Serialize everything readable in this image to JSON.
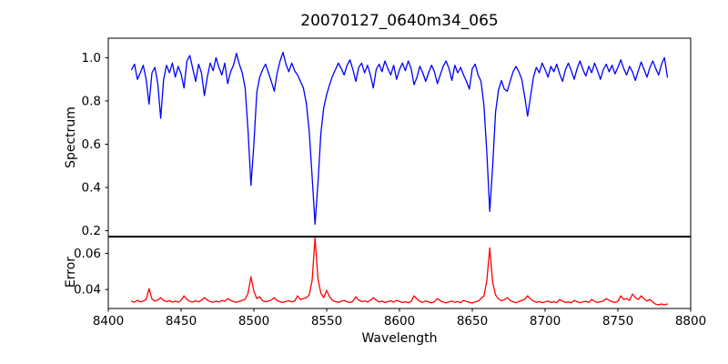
{
  "figure": {
    "title": "20070127_0640m34_065",
    "xlabel": "Wavelength",
    "panels": [
      {
        "ylabel": "Spectrum"
      },
      {
        "ylabel": "Error"
      }
    ]
  },
  "chart_data": [
    {
      "type": "line",
      "panel": "spectrum",
      "title": "20070127_0640m34_065",
      "ylabel": "Spectrum",
      "xlabel": "",
      "legend": "none",
      "grid": false,
      "color": "#0000ff",
      "xlim": [
        8400,
        8800
      ],
      "ylim": [
        0.175,
        1.09
      ],
      "yticks": [
        1.0,
        0.8,
        0.6,
        0.4,
        0.2
      ],
      "yticklabels": [
        "1.0",
        "0.8",
        "0.6",
        "0.4",
        "0.2"
      ],
      "x_start": 8416,
      "x_step": 2,
      "values": [
        0.945,
        0.97,
        0.9,
        0.93,
        0.965,
        0.9,
        0.785,
        0.93,
        0.955,
        0.88,
        0.72,
        0.9,
        0.965,
        0.93,
        0.975,
        0.91,
        0.96,
        0.925,
        0.86,
        0.985,
        1.01,
        0.95,
        0.89,
        0.97,
        0.93,
        0.825,
        0.91,
        0.975,
        0.94,
        1.0,
        0.955,
        0.92,
        0.975,
        0.88,
        0.935,
        0.965,
        1.02,
        0.97,
        0.93,
        0.86,
        0.66,
        0.41,
        0.6,
        0.84,
        0.91,
        0.945,
        0.97,
        0.93,
        0.89,
        0.845,
        0.93,
        0.985,
        1.025,
        0.97,
        0.935,
        0.975,
        0.94,
        0.92,
        0.89,
        0.86,
        0.79,
        0.66,
        0.45,
        0.23,
        0.42,
        0.65,
        0.77,
        0.83,
        0.875,
        0.915,
        0.945,
        0.975,
        0.95,
        0.92,
        0.965,
        0.99,
        0.945,
        0.89,
        0.955,
        0.975,
        0.93,
        0.965,
        0.92,
        0.86,
        0.945,
        0.97,
        0.935,
        0.985,
        0.95,
        0.92,
        0.965,
        0.9,
        0.945,
        0.975,
        0.94,
        0.985,
        0.95,
        0.875,
        0.91,
        0.96,
        0.93,
        0.89,
        0.93,
        0.965,
        0.935,
        0.88,
        0.92,
        0.96,
        0.985,
        0.95,
        0.895,
        0.965,
        0.93,
        0.955,
        0.92,
        0.89,
        0.855,
        0.95,
        0.97,
        0.92,
        0.89,
        0.78,
        0.56,
        0.29,
        0.5,
        0.75,
        0.85,
        0.895,
        0.855,
        0.845,
        0.89,
        0.935,
        0.96,
        0.935,
        0.9,
        0.82,
        0.73,
        0.82,
        0.91,
        0.955,
        0.93,
        0.975,
        0.945,
        0.91,
        0.96,
        0.935,
        0.97,
        0.925,
        0.89,
        0.945,
        0.975,
        0.94,
        0.9,
        0.95,
        0.985,
        0.945,
        0.915,
        0.96,
        0.93,
        0.975,
        0.94,
        0.9,
        0.945,
        0.97,
        0.935,
        0.965,
        0.925,
        0.955,
        0.99,
        0.95,
        0.92,
        0.96,
        0.935,
        0.895,
        0.94,
        0.98,
        0.945,
        0.91,
        0.955,
        0.985,
        0.95,
        0.92,
        0.97,
        1.0,
        0.91
      ]
    },
    {
      "type": "line",
      "panel": "error",
      "ylabel": "Error",
      "xlabel": "Wavelength",
      "legend": "none",
      "grid": false,
      "color": "#ff0000",
      "xlim": [
        8400,
        8800
      ],
      "ylim": [
        0.0295,
        0.069
      ],
      "yticks": [
        0.06,
        0.04
      ],
      "yticklabels": [
        "0.06",
        "0.04"
      ],
      "xticks": [
        8400,
        8450,
        8500,
        8550,
        8600,
        8650,
        8700,
        8750,
        8800
      ],
      "xticklabels": [
        "8400",
        "8450",
        "8500",
        "8550",
        "8600",
        "8650",
        "8700",
        "8750",
        "8800"
      ],
      "x_start": 8416,
      "x_step": 2,
      "values": [
        0.0335,
        0.033,
        0.034,
        0.0332,
        0.0336,
        0.0345,
        0.0405,
        0.0348,
        0.0336,
        0.0342,
        0.0355,
        0.034,
        0.0333,
        0.0338,
        0.033,
        0.0336,
        0.0329,
        0.034,
        0.0365,
        0.0345,
        0.0334,
        0.033,
        0.0338,
        0.0332,
        0.034,
        0.0355,
        0.0342,
        0.0333,
        0.0329,
        0.0336,
        0.0331,
        0.0339,
        0.0334,
        0.035,
        0.034,
        0.0333,
        0.0329,
        0.0335,
        0.034,
        0.0346,
        0.038,
        0.047,
        0.039,
        0.035,
        0.036,
        0.0338,
        0.0332,
        0.0336,
        0.0342,
        0.0355,
        0.034,
        0.0332,
        0.0328,
        0.0334,
        0.0338,
        0.0331,
        0.0336,
        0.0365,
        0.0345,
        0.035,
        0.0355,
        0.037,
        0.045,
        0.0685,
        0.046,
        0.038,
        0.0355,
        0.0395,
        0.036,
        0.034,
        0.0333,
        0.0329,
        0.0335,
        0.034,
        0.0332,
        0.0328,
        0.0334,
        0.036,
        0.0342,
        0.0333,
        0.0337,
        0.0331,
        0.034,
        0.0355,
        0.0342,
        0.0331,
        0.0336,
        0.0328,
        0.0333,
        0.0338,
        0.033,
        0.034,
        0.0334,
        0.0328,
        0.0332,
        0.0327,
        0.0333,
        0.0365,
        0.0348,
        0.0334,
        0.0329,
        0.0337,
        0.0331,
        0.0326,
        0.0332,
        0.035,
        0.0338,
        0.033,
        0.0326,
        0.0331,
        0.0336,
        0.0329,
        0.0333,
        0.0327,
        0.034,
        0.0334,
        0.0329,
        0.0325,
        0.0331,
        0.0336,
        0.035,
        0.0365,
        0.045,
        0.063,
        0.044,
        0.037,
        0.0348,
        0.0338,
        0.0344,
        0.0355,
        0.034,
        0.0331,
        0.0327,
        0.0333,
        0.034,
        0.0346,
        0.0365,
        0.0348,
        0.0336,
        0.0329,
        0.0333,
        0.0327,
        0.0331,
        0.0336,
        0.0328,
        0.0332,
        0.0327,
        0.0345,
        0.0336,
        0.0328,
        0.0331,
        0.0326,
        0.034,
        0.0332,
        0.0327,
        0.0331,
        0.0335,
        0.0328,
        0.0345,
        0.0334,
        0.0328,
        0.0332,
        0.0336,
        0.035,
        0.034,
        0.0332,
        0.0328,
        0.0334,
        0.0365,
        0.0345,
        0.035,
        0.034,
        0.0375,
        0.0355,
        0.0345,
        0.0365,
        0.0348,
        0.0336,
        0.0345,
        0.033,
        0.0318,
        0.0315,
        0.032,
        0.0315,
        0.032
      ]
    }
  ]
}
